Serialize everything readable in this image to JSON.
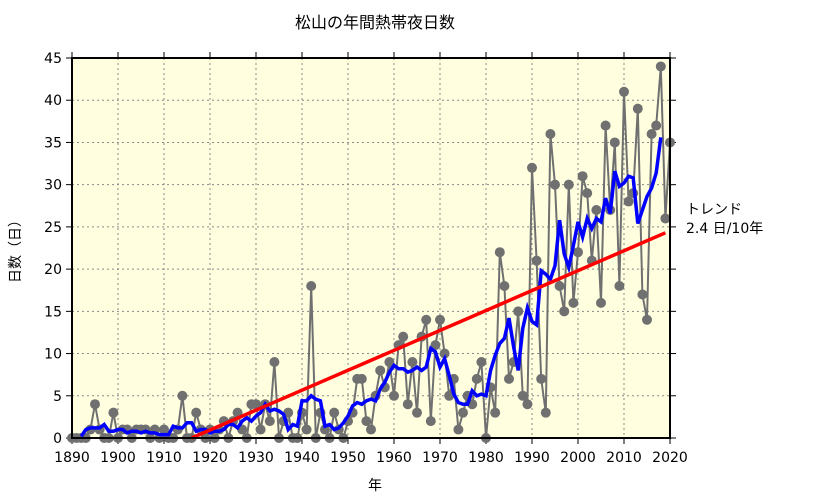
{
  "chart_data": {
    "type": "line",
    "title": "松山の年間熱帯夜日数",
    "xlabel": "年",
    "ylabel": "日数（日）",
    "xlim": [
      1890,
      2020
    ],
    "ylim": [
      0,
      45
    ],
    "xticks": [
      1890,
      1900,
      1910,
      1920,
      1930,
      1940,
      1950,
      1960,
      1970,
      1980,
      1990,
      2000,
      2010,
      2020
    ],
    "yticks": [
      0,
      5,
      10,
      15,
      20,
      25,
      30,
      35,
      40,
      45
    ],
    "grid": true,
    "start_year": 1890,
    "series": [
      {
        "role": "annual",
        "color": "#707070",
        "values": [
          0,
          0,
          0,
          0,
          1,
          4,
          1,
          0,
          0,
          3,
          0,
          1,
          1,
          0,
          1,
          1,
          1,
          0,
          1,
          0,
          1,
          0,
          0,
          1,
          5,
          0,
          0,
          3,
          1,
          0,
          1,
          0,
          1,
          2,
          0,
          2,
          3,
          1,
          0,
          4,
          4,
          1,
          4,
          2,
          9,
          0,
          2,
          3,
          0,
          0,
          3,
          1,
          18,
          0,
          3,
          1,
          0,
          3,
          1,
          0,
          2,
          3,
          7,
          7,
          2,
          1,
          5,
          8,
          6,
          9,
          5,
          11,
          12,
          4,
          9,
          3,
          12,
          14,
          2,
          11,
          14,
          10,
          5,
          7,
          1,
          3,
          5,
          4,
          7,
          9,
          0,
          6,
          3,
          22,
          18,
          7,
          9,
          15,
          5,
          4,
          32,
          21,
          7,
          3,
          36,
          30,
          18,
          15,
          30,
          16,
          22,
          31,
          29,
          21,
          27,
          16,
          37,
          27,
          35,
          18,
          41,
          28,
          29,
          39,
          17,
          14,
          36,
          37,
          44,
          26,
          35
        ]
      },
      {
        "role": "5-year moving average",
        "color": "#0000ff"
      },
      {
        "role": "trend",
        "color": "#ff0000",
        "x": [
          1916,
          2019
        ],
        "y": [
          0,
          24.3
        ]
      }
    ],
    "annotation": {
      "line1": "トレンド",
      "line2": "2.4 日/10年"
    },
    "plot_background": "#ffffe0"
  }
}
